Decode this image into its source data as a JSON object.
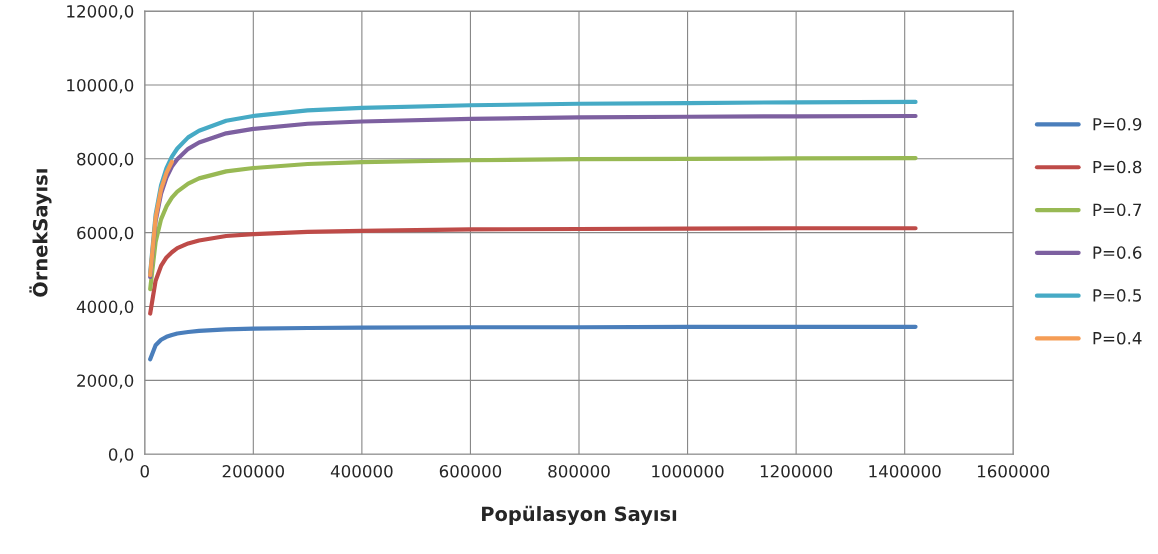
{
  "chart_data": {
    "type": "line",
    "xlabel": "Popülasyon Sayısı",
    "ylabel": "ÖrnekSayısı",
    "x": [
      10000,
      20000,
      30000,
      40000,
      50000,
      60000,
      80000,
      100000,
      150000,
      200000,
      300000,
      400000,
      600000,
      800000,
      1000000,
      1200000,
      1420000
    ],
    "series": [
      {
        "name": "P=0.9",
        "color": "#4a7ebb",
        "values": [
          2570,
          2950,
          3100,
          3180,
          3230,
          3270,
          3310,
          3340,
          3380,
          3400,
          3420,
          3430,
          3440,
          3440,
          3450,
          3450,
          3450
        ]
      },
      {
        "name": "P=0.8",
        "color": "#be4b48",
        "values": [
          3810,
          4700,
          5100,
          5330,
          5470,
          5580,
          5710,
          5790,
          5910,
          5960,
          6020,
          6050,
          6090,
          6100,
          6110,
          6120,
          6120
        ]
      },
      {
        "name": "P=0.7",
        "color": "#98b954",
        "values": [
          4470,
          5750,
          6360,
          6710,
          6950,
          7110,
          7330,
          7470,
          7660,
          7750,
          7860,
          7910,
          7960,
          7990,
          8000,
          8010,
          8020
        ]
      },
      {
        "name": "P=0.6",
        "color": "#7d60a0",
        "values": [
          4800,
          6310,
          7050,
          7490,
          7790,
          7990,
          8270,
          8440,
          8690,
          8810,
          8950,
          9010,
          9080,
          9120,
          9140,
          9150,
          9160
        ]
      },
      {
        "name": "P=0.5",
        "color": "#46aac5",
        "values": [
          4900,
          6490,
          7280,
          7750,
          8060,
          8280,
          8580,
          8760,
          9030,
          9160,
          9310,
          9380,
          9450,
          9490,
          9510,
          9530,
          9540
        ]
      },
      {
        "name": "P=0.4",
        "color": "#f59d56",
        "values": [
          4850,
          6400,
          7170,
          7620,
          7920,
          null,
          null,
          null,
          null,
          null,
          null,
          null,
          null,
          null,
          null,
          null,
          null
        ]
      }
    ],
    "xlim": [
      0,
      1600000
    ],
    "xticks": [
      0,
      200000,
      400000,
      600000,
      800000,
      1000000,
      1200000,
      1400000,
      1600000
    ],
    "ylim": [
      0,
      12000
    ],
    "yticks": [
      {
        "value": 0,
        "label": "0,0"
      },
      {
        "value": 2000,
        "label": "2000,0"
      },
      {
        "value": 4000,
        "label": "4000,0"
      },
      {
        "value": 6000,
        "label": "6000,0"
      },
      {
        "value": 8000,
        "label": "8000,0"
      },
      {
        "value": 10000,
        "label": "10000,0"
      },
      {
        "value": 12000,
        "label": "12000,0"
      }
    ],
    "grid": true,
    "legend": "right",
    "marker": "none",
    "line_style": "solid"
  }
}
